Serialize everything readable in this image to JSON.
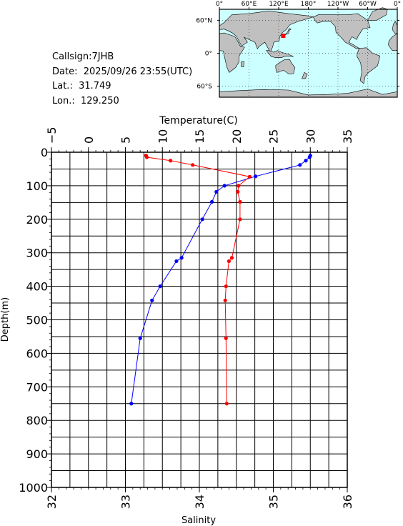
{
  "station": {
    "callsign": "Callsign:7JHB",
    "date": "Date:  2025/09/26 23:55(UTC)",
    "lat": "Lat.:  31.749",
    "lon": "Lon.:  129.250"
  },
  "map": {
    "lon_labels": [
      "0°",
      "60°E",
      "120°E",
      "180°",
      "120°W",
      "60°W",
      "0°"
    ],
    "lat_labels": [
      "60°N",
      "0°",
      "60°S"
    ],
    "ocean_color": "#ccffff",
    "land_color": "#c0c0c0",
    "marker_color": "#ff0000",
    "marker": {
      "lat": 31.749,
      "lon": 129.25
    }
  },
  "chart_data": {
    "type": "line",
    "top_axis_label": "Temperature(C)",
    "bottom_axis_label": "Salinity",
    "ylabel": "Depth(m)",
    "temperature_range": [
      -5,
      35
    ],
    "salinity_range": [
      32,
      36
    ],
    "depth_range": [
      0,
      1000
    ],
    "y_inverted": true,
    "grid": true,
    "temperature_ticks": [
      "-5",
      "0",
      "5",
      "10",
      "15",
      "20",
      "25",
      "30",
      "35"
    ],
    "salinity_ticks": [
      "32",
      "33",
      "34",
      "35",
      "36"
    ],
    "depth_ticks": [
      "0",
      "100",
      "200",
      "300",
      "400",
      "500",
      "600",
      "700",
      "800",
      "900",
      "1000"
    ],
    "series": [
      {
        "color": "#0000ff",
        "axis": "temperature",
        "points": [
          {
            "x": 30.0,
            "y": 10
          },
          {
            "x": 29.9,
            "y": 15
          },
          {
            "x": 29.4,
            "y": 25
          },
          {
            "x": 28.6,
            "y": 38
          },
          {
            "x": 22.6,
            "y": 72
          },
          {
            "x": 18.4,
            "y": 100
          },
          {
            "x": 17.3,
            "y": 118
          },
          {
            "x": 16.7,
            "y": 148
          },
          {
            "x": 15.4,
            "y": 200
          },
          {
            "x": 12.6,
            "y": 315
          },
          {
            "x": 11.9,
            "y": 325
          },
          {
            "x": 9.7,
            "y": 400
          },
          {
            "x": 8.6,
            "y": 442
          },
          {
            "x": 7.0,
            "y": 555
          },
          {
            "x": 5.8,
            "y": 750
          }
        ]
      },
      {
        "color": "#ff0000",
        "axis": "salinity",
        "points": [
          {
            "x": 33.28,
            "y": 10
          },
          {
            "x": 33.29,
            "y": 15
          },
          {
            "x": 33.61,
            "y": 25
          },
          {
            "x": 33.91,
            "y": 38
          },
          {
            "x": 34.68,
            "y": 73
          },
          {
            "x": 34.53,
            "y": 100
          },
          {
            "x": 34.52,
            "y": 118
          },
          {
            "x": 34.55,
            "y": 148
          },
          {
            "x": 34.55,
            "y": 200
          },
          {
            "x": 34.44,
            "y": 315
          },
          {
            "x": 34.4,
            "y": 325
          },
          {
            "x": 34.36,
            "y": 400
          },
          {
            "x": 34.35,
            "y": 442
          },
          {
            "x": 34.36,
            "y": 555
          },
          {
            "x": 34.37,
            "y": 750
          }
        ]
      }
    ]
  }
}
